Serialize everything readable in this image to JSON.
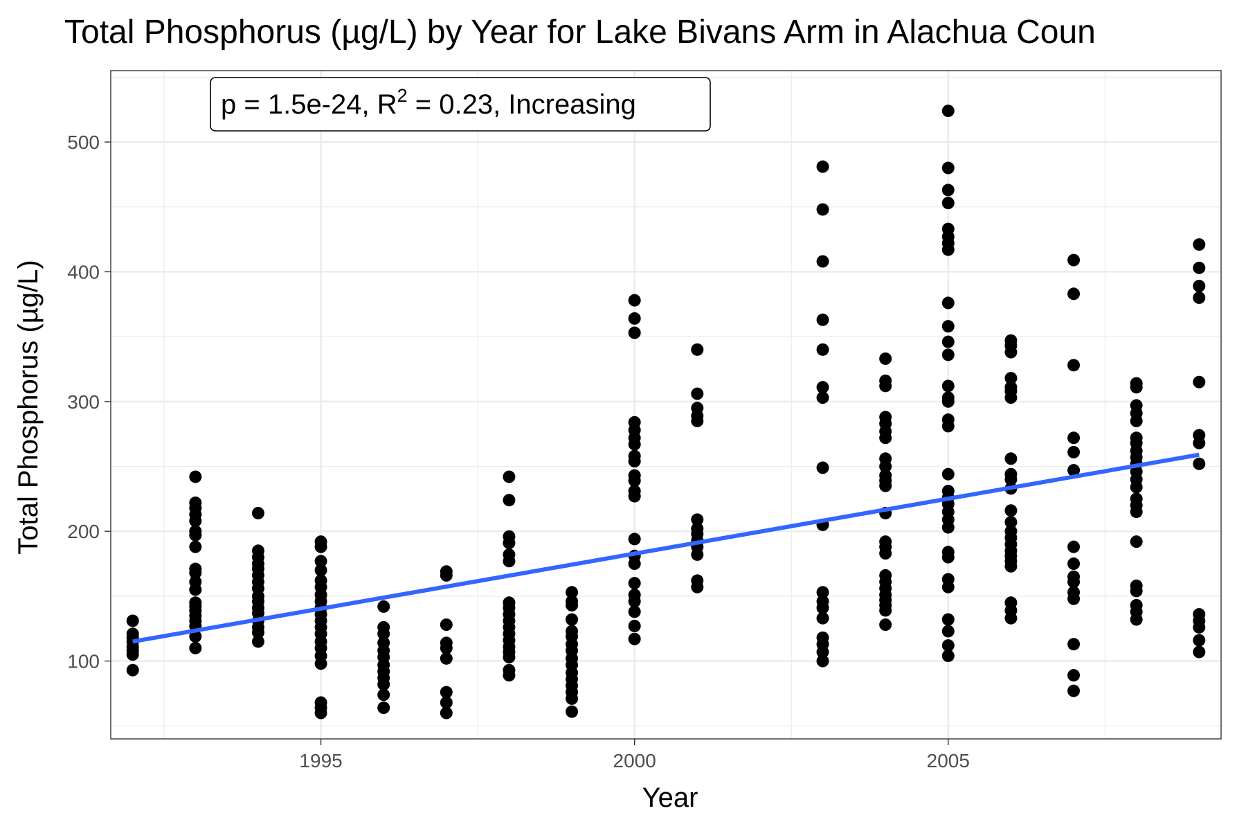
{
  "chart_data": {
    "type": "scatter",
    "title": "Total Phosphorus (µg/L) by Year for Lake Bivans Arm in Alachua Coun",
    "xlabel": "Year",
    "ylabel": "Total Phosphorus (µg/L)",
    "xlim": [
      1991.65,
      2009.35
    ],
    "ylim": [
      40,
      555
    ],
    "x_ticks": [
      1995,
      2000,
      2005
    ],
    "x_tick_labels": [
      "1995",
      "2000",
      "2005"
    ],
    "y_ticks": [
      100,
      200,
      300,
      400,
      500
    ],
    "y_tick_labels": [
      "100",
      "200",
      "300",
      "400",
      "500"
    ],
    "grid": true,
    "legend": "none",
    "annotation": {
      "text_before": "p = 1.5e-24, R",
      "superscript": "2",
      "text_after": " = 0.23, Increasing"
    },
    "trend_line": {
      "color": "#3366ff",
      "x": [
        1992,
        2009
      ],
      "y": [
        115,
        259
      ]
    },
    "point_color": "#000000",
    "points": [
      [
        1992,
        131
      ],
      [
        1992,
        121
      ],
      [
        1992,
        118
      ],
      [
        1992,
        115
      ],
      [
        1992,
        111
      ],
      [
        1992,
        108
      ],
      [
        1992,
        105
      ],
      [
        1992,
        93
      ],
      [
        1993,
        242
      ],
      [
        1993,
        222
      ],
      [
        1993,
        218
      ],
      [
        1993,
        213
      ],
      [
        1993,
        208
      ],
      [
        1993,
        200
      ],
      [
        1993,
        197
      ],
      [
        1993,
        188
      ],
      [
        1993,
        171
      ],
      [
        1993,
        168
      ],
      [
        1993,
        161
      ],
      [
        1993,
        155
      ],
      [
        1993,
        145
      ],
      [
        1993,
        142
      ],
      [
        1993,
        139
      ],
      [
        1993,
        135
      ],
      [
        1993,
        131
      ],
      [
        1993,
        127
      ],
      [
        1993,
        119
      ],
      [
        1993,
        110
      ],
      [
        1994,
        214
      ],
      [
        1994,
        185
      ],
      [
        1994,
        180
      ],
      [
        1994,
        175
      ],
      [
        1994,
        171
      ],
      [
        1994,
        166
      ],
      [
        1994,
        161
      ],
      [
        1994,
        156
      ],
      [
        1994,
        150
      ],
      [
        1994,
        146
      ],
      [
        1994,
        141
      ],
      [
        1994,
        137
      ],
      [
        1994,
        131
      ],
      [
        1994,
        126
      ],
      [
        1994,
        122
      ],
      [
        1994,
        115
      ],
      [
        1995,
        192
      ],
      [
        1995,
        188
      ],
      [
        1995,
        177
      ],
      [
        1995,
        170
      ],
      [
        1995,
        162
      ],
      [
        1995,
        157
      ],
      [
        1995,
        151
      ],
      [
        1995,
        146
      ],
      [
        1995,
        141
      ],
      [
        1995,
        136
      ],
      [
        1995,
        131
      ],
      [
        1995,
        126
      ],
      [
        1995,
        121
      ],
      [
        1995,
        115
      ],
      [
        1995,
        110
      ],
      [
        1995,
        104
      ],
      [
        1995,
        98
      ],
      [
        1995,
        68
      ],
      [
        1995,
        64
      ],
      [
        1995,
        60
      ],
      [
        1996,
        142
      ],
      [
        1996,
        126
      ],
      [
        1996,
        121
      ],
      [
        1996,
        114
      ],
      [
        1996,
        108
      ],
      [
        1996,
        103
      ],
      [
        1996,
        97
      ],
      [
        1996,
        92
      ],
      [
        1996,
        87
      ],
      [
        1996,
        82
      ],
      [
        1996,
        74
      ],
      [
        1996,
        64
      ],
      [
        1997,
        169
      ],
      [
        1997,
        166
      ],
      [
        1997,
        128
      ],
      [
        1997,
        114
      ],
      [
        1997,
        110
      ],
      [
        1997,
        102
      ],
      [
        1997,
        76
      ],
      [
        1997,
        68
      ],
      [
        1997,
        60
      ],
      [
        1998,
        242
      ],
      [
        1998,
        224
      ],
      [
        1998,
        196
      ],
      [
        1998,
        191
      ],
      [
        1998,
        182
      ],
      [
        1998,
        177
      ],
      [
        1998,
        145
      ],
      [
        1998,
        141
      ],
      [
        1998,
        136
      ],
      [
        1998,
        131
      ],
      [
        1998,
        126
      ],
      [
        1998,
        121
      ],
      [
        1998,
        116
      ],
      [
        1998,
        111
      ],
      [
        1998,
        107
      ],
      [
        1998,
        103
      ],
      [
        1998,
        93
      ],
      [
        1998,
        89
      ],
      [
        1999,
        153
      ],
      [
        1999,
        146
      ],
      [
        1999,
        143
      ],
      [
        1999,
        132
      ],
      [
        1999,
        123
      ],
      [
        1999,
        119
      ],
      [
        1999,
        113
      ],
      [
        1999,
        108
      ],
      [
        1999,
        102
      ],
      [
        1999,
        97
      ],
      [
        1999,
        91
      ],
      [
        1999,
        86
      ],
      [
        1999,
        81
      ],
      [
        1999,
        76
      ],
      [
        1999,
        71
      ],
      [
        1999,
        61
      ],
      [
        2000,
        378
      ],
      [
        2000,
        364
      ],
      [
        2000,
        353
      ],
      [
        2000,
        284
      ],
      [
        2000,
        278
      ],
      [
        2000,
        272
      ],
      [
        2000,
        267
      ],
      [
        2000,
        258
      ],
      [
        2000,
        254
      ],
      [
        2000,
        243
      ],
      [
        2000,
        239
      ],
      [
        2000,
        231
      ],
      [
        2000,
        227
      ],
      [
        2000,
        194
      ],
      [
        2000,
        181
      ],
      [
        2000,
        175
      ],
      [
        2000,
        160
      ],
      [
        2000,
        151
      ],
      [
        2000,
        146
      ],
      [
        2000,
        138
      ],
      [
        2000,
        127
      ],
      [
        2000,
        117
      ],
      [
        2001,
        340
      ],
      [
        2001,
        306
      ],
      [
        2001,
        295
      ],
      [
        2001,
        289
      ],
      [
        2001,
        285
      ],
      [
        2001,
        209
      ],
      [
        2001,
        202
      ],
      [
        2001,
        198
      ],
      [
        2001,
        193
      ],
      [
        2001,
        188
      ],
      [
        2001,
        182
      ],
      [
        2001,
        162
      ],
      [
        2001,
        157
      ],
      [
        2003,
        481
      ],
      [
        2003,
        448
      ],
      [
        2003,
        408
      ],
      [
        2003,
        363
      ],
      [
        2003,
        340
      ],
      [
        2003,
        311
      ],
      [
        2003,
        303
      ],
      [
        2003,
        249
      ],
      [
        2003,
        205
      ],
      [
        2003,
        153
      ],
      [
        2003,
        146
      ],
      [
        2003,
        141
      ],
      [
        2003,
        133
      ],
      [
        2003,
        118
      ],
      [
        2003,
        113
      ],
      [
        2003,
        107
      ],
      [
        2003,
        100
      ],
      [
        2004,
        333
      ],
      [
        2004,
        316
      ],
      [
        2004,
        312
      ],
      [
        2004,
        288
      ],
      [
        2004,
        283
      ],
      [
        2004,
        277
      ],
      [
        2004,
        272
      ],
      [
        2004,
        256
      ],
      [
        2004,
        250
      ],
      [
        2004,
        243
      ],
      [
        2004,
        239
      ],
      [
        2004,
        235
      ],
      [
        2004,
        214
      ],
      [
        2004,
        192
      ],
      [
        2004,
        188
      ],
      [
        2004,
        183
      ],
      [
        2004,
        166
      ],
      [
        2004,
        161
      ],
      [
        2004,
        156
      ],
      [
        2004,
        151
      ],
      [
        2004,
        147
      ],
      [
        2004,
        143
      ],
      [
        2004,
        139
      ],
      [
        2004,
        128
      ],
      [
        2005,
        524
      ],
      [
        2005,
        480
      ],
      [
        2005,
        463
      ],
      [
        2005,
        453
      ],
      [
        2005,
        433
      ],
      [
        2005,
        427
      ],
      [
        2005,
        422
      ],
      [
        2005,
        417
      ],
      [
        2005,
        376
      ],
      [
        2005,
        358
      ],
      [
        2005,
        346
      ],
      [
        2005,
        336
      ],
      [
        2005,
        312
      ],
      [
        2005,
        303
      ],
      [
        2005,
        300
      ],
      [
        2005,
        286
      ],
      [
        2005,
        281
      ],
      [
        2005,
        244
      ],
      [
        2005,
        231
      ],
      [
        2005,
        226
      ],
      [
        2005,
        221
      ],
      [
        2005,
        215
      ],
      [
        2005,
        209
      ],
      [
        2005,
        203
      ],
      [
        2005,
        184
      ],
      [
        2005,
        180
      ],
      [
        2005,
        163
      ],
      [
        2005,
        157
      ],
      [
        2005,
        132
      ],
      [
        2005,
        123
      ],
      [
        2005,
        112
      ],
      [
        2005,
        104
      ],
      [
        2006,
        347
      ],
      [
        2006,
        343
      ],
      [
        2006,
        338
      ],
      [
        2006,
        318
      ],
      [
        2006,
        311
      ],
      [
        2006,
        308
      ],
      [
        2006,
        303
      ],
      [
        2006,
        256
      ],
      [
        2006,
        244
      ],
      [
        2006,
        240
      ],
      [
        2006,
        233
      ],
      [
        2006,
        216
      ],
      [
        2006,
        207
      ],
      [
        2006,
        200
      ],
      [
        2006,
        195
      ],
      [
        2006,
        190
      ],
      [
        2006,
        185
      ],
      [
        2006,
        181
      ],
      [
        2006,
        177
      ],
      [
        2006,
        173
      ],
      [
        2006,
        145
      ],
      [
        2006,
        139
      ],
      [
        2006,
        133
      ],
      [
        2007,
        409
      ],
      [
        2007,
        383
      ],
      [
        2007,
        328
      ],
      [
        2007,
        272
      ],
      [
        2007,
        261
      ],
      [
        2007,
        247
      ],
      [
        2007,
        188
      ],
      [
        2007,
        175
      ],
      [
        2007,
        165
      ],
      [
        2007,
        161
      ],
      [
        2007,
        153
      ],
      [
        2007,
        148
      ],
      [
        2007,
        113
      ],
      [
        2007,
        89
      ],
      [
        2007,
        77
      ],
      [
        2008,
        314
      ],
      [
        2008,
        311
      ],
      [
        2008,
        297
      ],
      [
        2008,
        291
      ],
      [
        2008,
        285
      ],
      [
        2008,
        272
      ],
      [
        2008,
        268
      ],
      [
        2008,
        262
      ],
      [
        2008,
        257
      ],
      [
        2008,
        252
      ],
      [
        2008,
        246
      ],
      [
        2008,
        240
      ],
      [
        2008,
        234
      ],
      [
        2008,
        225
      ],
      [
        2008,
        220
      ],
      [
        2008,
        215
      ],
      [
        2008,
        192
      ],
      [
        2008,
        158
      ],
      [
        2008,
        154
      ],
      [
        2008,
        143
      ],
      [
        2008,
        138
      ],
      [
        2008,
        132
      ],
      [
        2009,
        421
      ],
      [
        2009,
        403
      ],
      [
        2009,
        389
      ],
      [
        2009,
        380
      ],
      [
        2009,
        315
      ],
      [
        2009,
        274
      ],
      [
        2009,
        268
      ],
      [
        2009,
        252
      ],
      [
        2009,
        136
      ],
      [
        2009,
        131
      ],
      [
        2009,
        126
      ],
      [
        2009,
        116
      ],
      [
        2009,
        107
      ]
    ]
  }
}
